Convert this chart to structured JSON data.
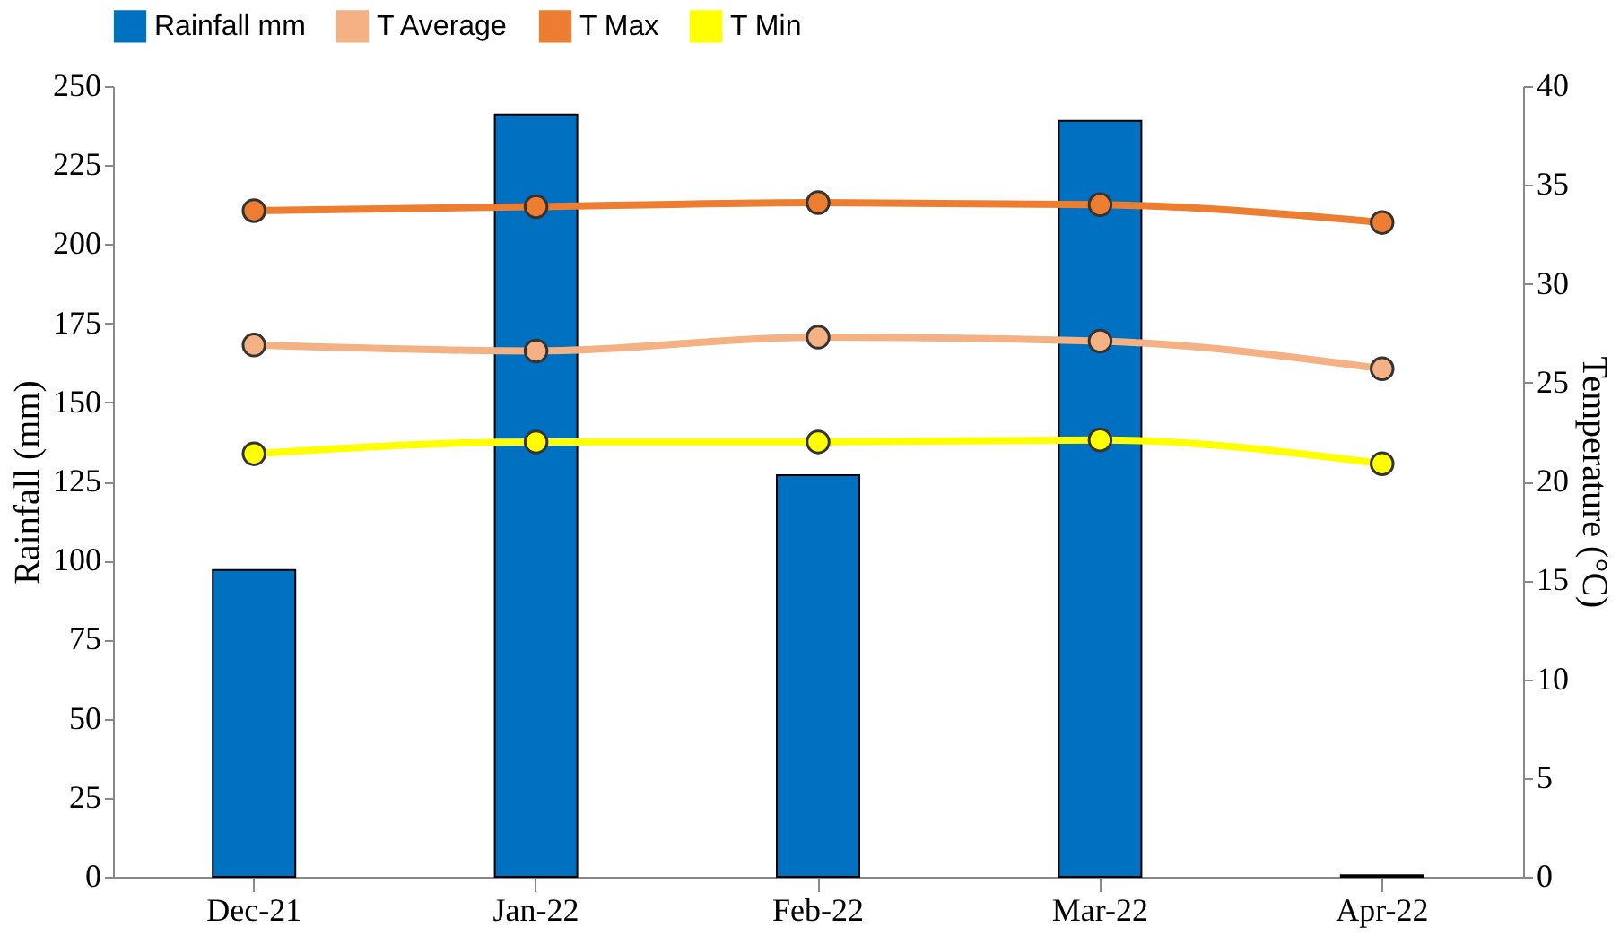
{
  "chart_data": {
    "type": "bar",
    "categories": [
      "Dec-21",
      "Jan-22",
      "Feb-22",
      "Mar-22",
      "Apr-22"
    ],
    "ylabel": "Rainfall (mm)",
    "y2label": "Temperature (°C)",
    "ylim": [
      0,
      250
    ],
    "yticks": [
      0,
      25,
      50,
      75,
      100,
      125,
      150,
      175,
      200,
      225,
      250
    ],
    "y2lim": [
      0,
      40
    ],
    "y2ticks": [
      0,
      5,
      10,
      15,
      20,
      25,
      30,
      35,
      40
    ],
    "grid": false,
    "legend": "top",
    "marker": "circle",
    "line_style": "solid",
    "series": [
      {
        "name": "Rainfall mm",
        "color": "#0070c0",
        "values": [
          97,
          241,
          127,
          239,
          0.5
        ]
      },
      {
        "name": "T Average",
        "type": "line",
        "axis": "y2",
        "color": "#f4b183",
        "values": [
          26.9,
          26.6,
          27.3,
          27.1,
          25.7
        ]
      },
      {
        "name": "T Max",
        "type": "line",
        "axis": "y2",
        "color": "#ed7d31",
        "values": [
          33.7,
          33.9,
          34.1,
          34.0,
          33.1
        ]
      },
      {
        "name": "T Min",
        "type": "line",
        "axis": "y2",
        "color": "#ffff00",
        "values": [
          21.4,
          22.0,
          22.0,
          22.1,
          20.9
        ]
      }
    ]
  }
}
